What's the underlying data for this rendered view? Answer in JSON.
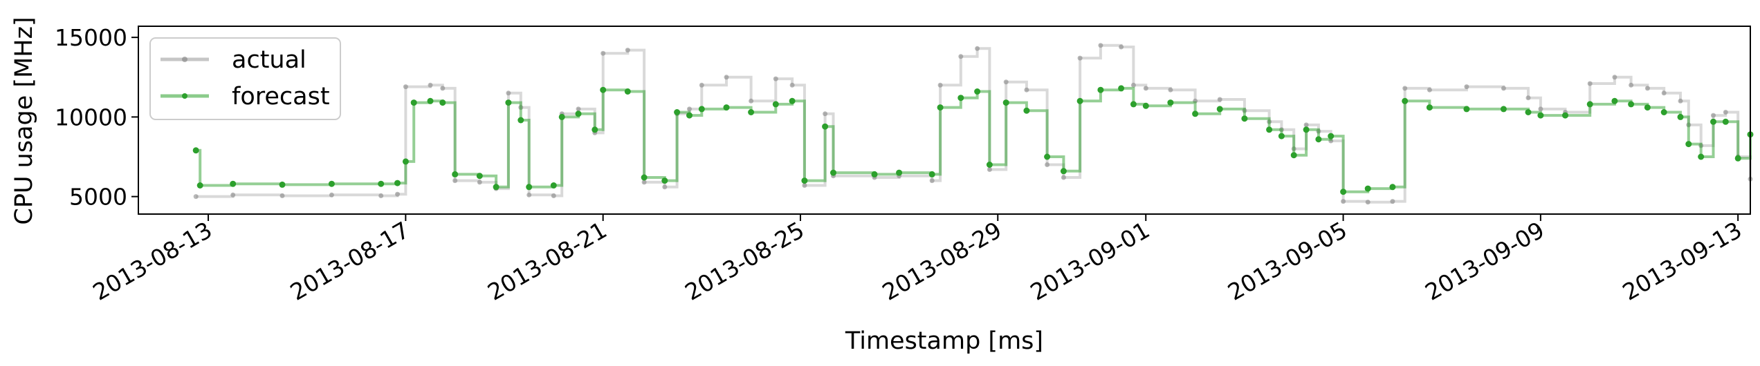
{
  "chart_data": {
    "type": "line",
    "xlabel": "Timestamp [ms]",
    "ylabel": "CPU usage [MHz]",
    "ylim": [
      3900,
      15700
    ],
    "xlim": [
      "2013-08-11T14:00",
      "2013-09-13T06:00"
    ],
    "y_ticks": [
      5000,
      10000,
      15000
    ],
    "y_tick_labels": [
      "5000",
      "10000",
      "15000"
    ],
    "x_ticks": [
      "2013-08-13",
      "2013-08-17",
      "2013-08-21",
      "2013-08-25",
      "2013-08-29",
      "2013-09-01",
      "2013-09-05",
      "2013-09-09",
      "2013-09-13"
    ],
    "x_tick_labels": [
      "2013-08-13",
      "2013-08-17",
      "2013-08-21",
      "2013-08-25",
      "2013-08-29",
      "2013-09-01",
      "2013-09-05",
      "2013-09-09",
      "2013-09-13"
    ],
    "grid": false,
    "legend_position": "top-left",
    "series": [
      {
        "name": "actual",
        "color": "#808080",
        "points": [
          [
            "2013-08-12T18:00",
            5000
          ],
          [
            "2013-08-13T12:00",
            5100
          ],
          [
            "2013-08-14T12:00",
            5050
          ],
          [
            "2013-08-15T12:00",
            5100
          ],
          [
            "2013-08-16T12:00",
            5050
          ],
          [
            "2013-08-16T20:00",
            5150
          ],
          [
            "2013-08-17T00:00",
            11900
          ],
          [
            "2013-08-17T12:00",
            12000
          ],
          [
            "2013-08-17T18:00",
            11800
          ],
          [
            "2013-08-18T00:00",
            6000
          ],
          [
            "2013-08-18T12:00",
            5900
          ],
          [
            "2013-08-18T20:00",
            5500
          ],
          [
            "2013-08-19T02:00",
            11500
          ],
          [
            "2013-08-19T08:00",
            10600
          ],
          [
            "2013-08-19T12:00",
            5100
          ],
          [
            "2013-08-20T00:00",
            5050
          ],
          [
            "2013-08-20T04:00",
            10200
          ],
          [
            "2013-08-20T12:00",
            10500
          ],
          [
            "2013-08-20T20:00",
            9000
          ],
          [
            "2013-08-21T00:00",
            14000
          ],
          [
            "2013-08-21T12:00",
            14200
          ],
          [
            "2013-08-21T20:00",
            5900
          ],
          [
            "2013-08-22T06:00",
            5600
          ],
          [
            "2013-08-22T12:00",
            10200
          ],
          [
            "2013-08-22T18:00",
            10500
          ],
          [
            "2013-08-23T00:00",
            12000
          ],
          [
            "2013-08-23T12:00",
            12500
          ],
          [
            "2013-08-24T00:00",
            11000
          ],
          [
            "2013-08-24T12:00",
            12400
          ],
          [
            "2013-08-24T20:00",
            12000
          ],
          [
            "2013-08-25T02:00",
            5700
          ],
          [
            "2013-08-25T12:00",
            10200
          ],
          [
            "2013-08-25T16:00",
            6300
          ],
          [
            "2013-08-26T12:00",
            6200
          ],
          [
            "2013-08-27T00:00",
            6300
          ],
          [
            "2013-08-27T16:00",
            6000
          ],
          [
            "2013-08-27T20:00",
            12000
          ],
          [
            "2013-08-28T06:00",
            13800
          ],
          [
            "2013-08-28T14:00",
            14300
          ],
          [
            "2013-08-28T20:00",
            6700
          ],
          [
            "2013-08-29T04:00",
            12200
          ],
          [
            "2013-08-29T14:00",
            11700
          ],
          [
            "2013-08-30T00:00",
            7000
          ],
          [
            "2013-08-30T08:00",
            6200
          ],
          [
            "2013-08-30T16:00",
            13700
          ],
          [
            "2013-08-31T02:00",
            14500
          ],
          [
            "2013-08-31T12:00",
            14400
          ],
          [
            "2013-08-31T18:00",
            12000
          ],
          [
            "2013-09-01T00:00",
            11800
          ],
          [
            "2013-09-01T12:00",
            11700
          ],
          [
            "2013-09-02T00:00",
            11000
          ],
          [
            "2013-09-02T12:00",
            11100
          ],
          [
            "2013-09-03T00:00",
            10400
          ],
          [
            "2013-09-03T12:00",
            9700
          ],
          [
            "2013-09-03T18:00",
            9200
          ],
          [
            "2013-09-04T00:00",
            8000
          ],
          [
            "2013-09-04T06:00",
            9500
          ],
          [
            "2013-09-04T12:00",
            9100
          ],
          [
            "2013-09-04T18:00",
            8500
          ],
          [
            "2013-09-05T00:00",
            4700
          ],
          [
            "2013-09-05T12:00",
            4650
          ],
          [
            "2013-09-06T00:00",
            4700
          ],
          [
            "2013-09-06T06:00",
            11800
          ],
          [
            "2013-09-06T18:00",
            11700
          ],
          [
            "2013-09-07T12:00",
            11900
          ],
          [
            "2013-09-08T06:00",
            11800
          ],
          [
            "2013-09-08T18:00",
            11200
          ],
          [
            "2013-09-09T00:00",
            10500
          ],
          [
            "2013-09-09T12:00",
            10300
          ],
          [
            "2013-09-10T00:00",
            12100
          ],
          [
            "2013-09-10T12:00",
            12500
          ],
          [
            "2013-09-10T20:00",
            12000
          ],
          [
            "2013-09-11T04:00",
            11800
          ],
          [
            "2013-09-11T12:00",
            11500
          ],
          [
            "2013-09-11T20:00",
            11000
          ],
          [
            "2013-09-12T00:00",
            9500
          ],
          [
            "2013-09-12T06:00",
            8200
          ],
          [
            "2013-09-12T12:00",
            10100
          ],
          [
            "2013-09-12T18:00",
            10300
          ],
          [
            "2013-09-13T00:00",
            7500
          ],
          [
            "2013-09-13T06:00",
            6100
          ]
        ]
      },
      {
        "name": "forecast",
        "color": "#2ca02c",
        "points": [
          [
            "2013-08-12T18:00",
            7900
          ],
          [
            "2013-08-12T20:00",
            5700
          ],
          [
            "2013-08-13T12:00",
            5800
          ],
          [
            "2013-08-14T12:00",
            5750
          ],
          [
            "2013-08-15T12:00",
            5800
          ],
          [
            "2013-08-16T12:00",
            5800
          ],
          [
            "2013-08-16T20:00",
            5850
          ],
          [
            "2013-08-17T00:00",
            7200
          ],
          [
            "2013-08-17T04:00",
            10900
          ],
          [
            "2013-08-17T12:00",
            11000
          ],
          [
            "2013-08-17T18:00",
            10900
          ],
          [
            "2013-08-18T00:00",
            6400
          ],
          [
            "2013-08-18T12:00",
            6300
          ],
          [
            "2013-08-18T20:00",
            5600
          ],
          [
            "2013-08-19T02:00",
            10900
          ],
          [
            "2013-08-19T08:00",
            9800
          ],
          [
            "2013-08-19T12:00",
            5600
          ],
          [
            "2013-08-20T00:00",
            5700
          ],
          [
            "2013-08-20T04:00",
            10000
          ],
          [
            "2013-08-20T12:00",
            10200
          ],
          [
            "2013-08-20T20:00",
            9200
          ],
          [
            "2013-08-21T00:00",
            11700
          ],
          [
            "2013-08-21T12:00",
            11600
          ],
          [
            "2013-08-21T20:00",
            6200
          ],
          [
            "2013-08-22T06:00",
            6000
          ],
          [
            "2013-08-22T12:00",
            10300
          ],
          [
            "2013-08-22T18:00",
            10100
          ],
          [
            "2013-08-23T00:00",
            10500
          ],
          [
            "2013-08-23T12:00",
            10600
          ],
          [
            "2013-08-24T00:00",
            10300
          ],
          [
            "2013-08-24T12:00",
            10800
          ],
          [
            "2013-08-24T20:00",
            11000
          ],
          [
            "2013-08-25T02:00",
            6000
          ],
          [
            "2013-08-25T12:00",
            9400
          ],
          [
            "2013-08-25T16:00",
            6500
          ],
          [
            "2013-08-26T12:00",
            6400
          ],
          [
            "2013-08-27T00:00",
            6500
          ],
          [
            "2013-08-27T16:00",
            6400
          ],
          [
            "2013-08-27T20:00",
            10600
          ],
          [
            "2013-08-28T06:00",
            11200
          ],
          [
            "2013-08-28T14:00",
            11600
          ],
          [
            "2013-08-28T20:00",
            7000
          ],
          [
            "2013-08-29T04:00",
            10900
          ],
          [
            "2013-08-29T14:00",
            10400
          ],
          [
            "2013-08-30T00:00",
            7500
          ],
          [
            "2013-08-30T08:00",
            6600
          ],
          [
            "2013-08-30T16:00",
            11000
          ],
          [
            "2013-08-31T02:00",
            11700
          ],
          [
            "2013-08-31T12:00",
            11800
          ],
          [
            "2013-08-31T18:00",
            10800
          ],
          [
            "2013-09-01T00:00",
            10700
          ],
          [
            "2013-09-01T12:00",
            10900
          ],
          [
            "2013-09-02T00:00",
            10200
          ],
          [
            "2013-09-02T12:00",
            10500
          ],
          [
            "2013-09-03T00:00",
            9900
          ],
          [
            "2013-09-03T12:00",
            9200
          ],
          [
            "2013-09-03T18:00",
            8800
          ],
          [
            "2013-09-04T00:00",
            7600
          ],
          [
            "2013-09-04T06:00",
            9200
          ],
          [
            "2013-09-04T12:00",
            8600
          ],
          [
            "2013-09-04T18:00",
            8800
          ],
          [
            "2013-09-05T00:00",
            5300
          ],
          [
            "2013-09-05T12:00",
            5500
          ],
          [
            "2013-09-06T00:00",
            5600
          ],
          [
            "2013-09-06T06:00",
            11000
          ],
          [
            "2013-09-06T18:00",
            10600
          ],
          [
            "2013-09-07T12:00",
            10500
          ],
          [
            "2013-09-08T06:00",
            10500
          ],
          [
            "2013-09-08T18:00",
            10300
          ],
          [
            "2013-09-09T00:00",
            10100
          ],
          [
            "2013-09-09T12:00",
            10100
          ],
          [
            "2013-09-10T00:00",
            10800
          ],
          [
            "2013-09-10T12:00",
            11000
          ],
          [
            "2013-09-10T20:00",
            10800
          ],
          [
            "2013-09-11T04:00",
            10600
          ],
          [
            "2013-09-11T12:00",
            10300
          ],
          [
            "2013-09-11T20:00",
            10000
          ],
          [
            "2013-09-12T00:00",
            8300
          ],
          [
            "2013-09-12T06:00",
            7500
          ],
          [
            "2013-09-12T12:00",
            9700
          ],
          [
            "2013-09-12T18:00",
            9700
          ],
          [
            "2013-09-13T00:00",
            7400
          ],
          [
            "2013-09-13T06:00",
            8900
          ]
        ]
      }
    ]
  }
}
